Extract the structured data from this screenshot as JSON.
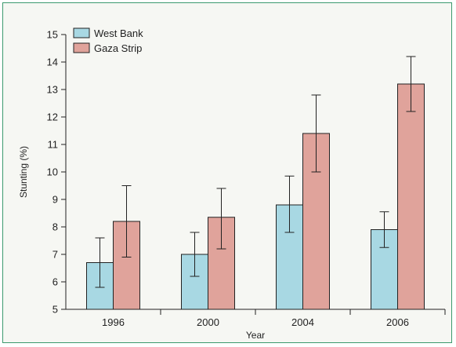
{
  "chart_data": {
    "type": "bar",
    "title": "",
    "xlabel": "Year",
    "ylabel": "Stunting (%)",
    "categories": [
      "1996",
      "2000",
      "2004",
      "2006"
    ],
    "ylim": [
      5,
      15
    ],
    "yticks": [
      5,
      6,
      7,
      8,
      9,
      10,
      11,
      12,
      13,
      14,
      15
    ],
    "grid": false,
    "legend": "top-left",
    "series": [
      {
        "name": "West Bank",
        "color": "#a8d8e3",
        "values": [
          6.7,
          7.0,
          8.8,
          7.9
        ],
        "error_low": [
          5.8,
          6.2,
          7.8,
          7.25
        ],
        "error_high": [
          7.6,
          7.8,
          9.85,
          8.55
        ]
      },
      {
        "name": "Gaza Strip",
        "color": "#e0a39b",
        "values": [
          8.2,
          8.35,
          11.4,
          13.2
        ],
        "error_low": [
          6.9,
          7.2,
          10.0,
          12.2
        ],
        "error_high": [
          9.5,
          9.4,
          12.8,
          14.2
        ]
      }
    ]
  }
}
